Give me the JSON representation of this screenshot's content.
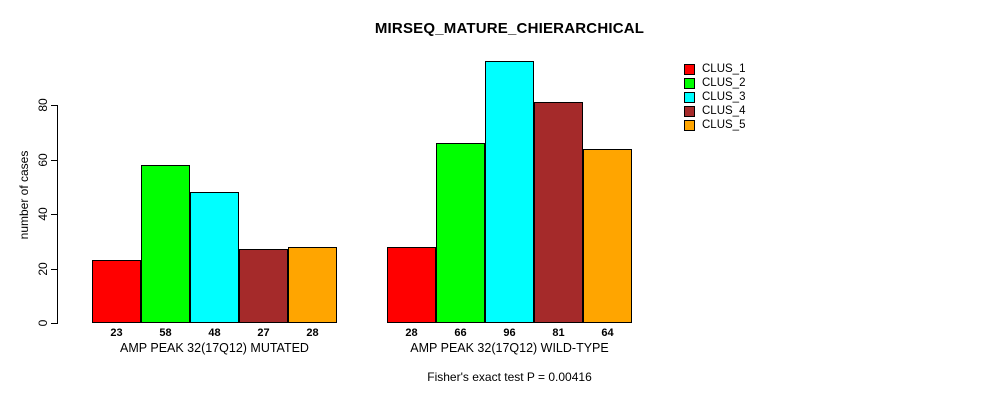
{
  "chart_data": {
    "type": "bar",
    "title": "MIRSEQ_MATURE_CHIERARCHICAL",
    "ylabel": "number of cases",
    "xlabel": "",
    "yticks": [
      0,
      20,
      40,
      60,
      80
    ],
    "ylim": [
      0,
      100
    ],
    "grid": false,
    "legend_position": "top-right",
    "categories": [
      "CLUS_1",
      "CLUS_2",
      "CLUS_3",
      "CLUS_4",
      "CLUS_5"
    ],
    "series_colors": [
      "#FF0000",
      "#00FF00",
      "#00FFFF",
      "#A52A2A",
      "#FFA500"
    ],
    "groups": [
      {
        "label": "AMP PEAK 32(17Q12) MUTATED",
        "values": [
          23,
          58,
          48,
          27,
          28
        ]
      },
      {
        "label": "AMP PEAK 32(17Q12) WILD-TYPE",
        "values": [
          28,
          66,
          96,
          81,
          64
        ]
      }
    ],
    "annotation": "Fisher's exact test P = 0.00416"
  },
  "colors": {
    "background": "#FFFFFF",
    "axis": "#000000",
    "text": "#000000"
  }
}
